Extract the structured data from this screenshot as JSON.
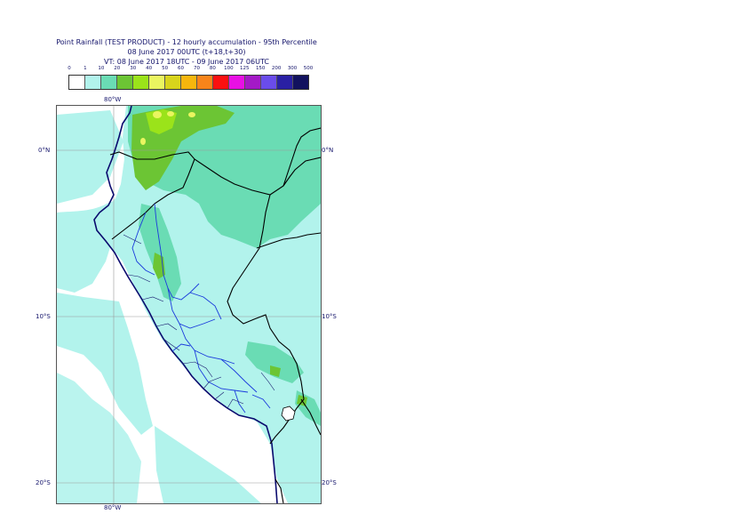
{
  "title": {
    "line1": "Point Rainfall (TEST PRODUCT) - 12 hourly accumulation - 95th Percentile",
    "line2": "08 June 2017 00UTC (t+18,t+30)",
    "line3": "VT: 08 June 2017 18UTC - 09 June 2017 06UTC"
  },
  "legend": {
    "labels": [
      "0",
      "1",
      "10",
      "20",
      "30",
      "40",
      "50",
      "60",
      "70",
      "80",
      "100",
      "125",
      "150",
      "200",
      "300",
      "500"
    ],
    "colors": [
      "#ffffff",
      "#b2f3ec",
      "#6adcb4",
      "#6cc534",
      "#9be31a",
      "#eaf560",
      "#d8d41c",
      "#f6b60d",
      "#f8841a",
      "#fa1010",
      "#e810e4",
      "#a41ac6",
      "#6a4cea",
      "#2a20a4",
      "#12125e"
    ]
  },
  "map": {
    "lat_labels": [
      "0°N",
      "10°S",
      "20°S"
    ],
    "lon_label_top": "80°W",
    "lon_label_bottom": "80°W",
    "colors": {
      "ocean": "#ffffff",
      "light_rain": "#b2f3ec",
      "moderate_rain": "#6adcb4",
      "heavy_rain": "#6cc534",
      "very_heavy_rain": "#9be31a",
      "extreme_rain": "#eaf560",
      "coast": "#0a0a6e",
      "admin": "#1a3adc",
      "border": "#000000",
      "grid": "#9a9a9a"
    }
  }
}
